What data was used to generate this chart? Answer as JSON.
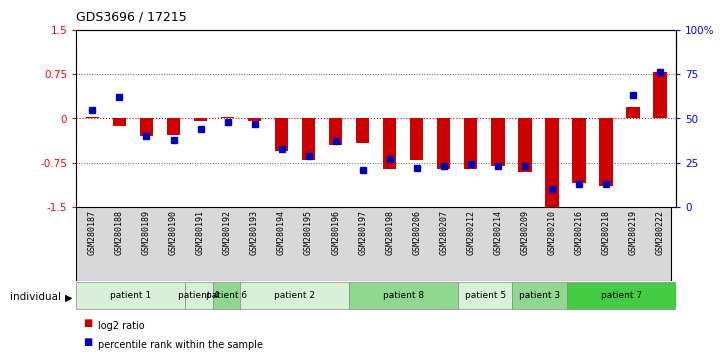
{
  "title": "GDS3696 / 17215",
  "samples": [
    "GSM280187",
    "GSM280188",
    "GSM280189",
    "GSM280190",
    "GSM280191",
    "GSM280192",
    "GSM280193",
    "GSM280194",
    "GSM280195",
    "GSM280196",
    "GSM280197",
    "GSM280198",
    "GSM280206",
    "GSM280207",
    "GSM280212",
    "GSM280214",
    "GSM280209",
    "GSM280210",
    "GSM280216",
    "GSM280218",
    "GSM280219",
    "GSM280222"
  ],
  "log2_ratio": [
    0.02,
    -0.12,
    -0.3,
    -0.28,
    -0.05,
    0.02,
    -0.05,
    -0.55,
    -0.7,
    -0.45,
    -0.42,
    -0.85,
    -0.7,
    -0.85,
    -0.85,
    -0.8,
    -0.9,
    -1.5,
    -1.1,
    -1.15,
    0.2,
    0.78
  ],
  "percentile_rank": [
    55,
    62,
    40,
    38,
    44,
    48,
    47,
    33,
    29,
    37,
    21,
    27,
    22,
    23,
    24,
    23,
    23,
    10,
    13,
    13,
    63,
    76
  ],
  "patients": [
    {
      "label": "patient 1",
      "start": 0,
      "end": 4,
      "color": "#d8f0d8"
    },
    {
      "label": "patient 4",
      "start": 4,
      "end": 5,
      "color": "#d8f0d8"
    },
    {
      "label": "patient 6",
      "start": 5,
      "end": 6,
      "color": "#90d890"
    },
    {
      "label": "patient 2",
      "start": 6,
      "end": 10,
      "color": "#d8f0d8"
    },
    {
      "label": "patient 8",
      "start": 10,
      "end": 14,
      "color": "#90d890"
    },
    {
      "label": "patient 5",
      "start": 14,
      "end": 16,
      "color": "#d8f0d8"
    },
    {
      "label": "patient 3",
      "start": 16,
      "end": 18,
      "color": "#90d890"
    },
    {
      "label": "patient 7",
      "start": 18,
      "end": 22,
      "color": "#44cc44"
    }
  ],
  "ylim_left": [
    -1.5,
    1.5
  ],
  "ylim_right": [
    0,
    100
  ],
  "yticks_left": [
    -1.5,
    -0.75,
    0,
    0.75,
    1.5
  ],
  "yticks_right": [
    0,
    25,
    50,
    75,
    100
  ],
  "bar_color_red": "#cc0000",
  "bar_color_blue": "#0000bb",
  "zero_line_color": "#cc0000",
  "figsize": [
    7.36,
    3.54
  ],
  "dpi": 100
}
